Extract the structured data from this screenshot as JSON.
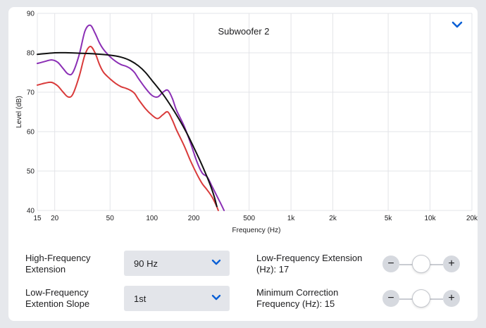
{
  "chart_data": {
    "type": "line",
    "title": "Subwoofer 2",
    "xlabel": "Frequency (Hz)",
    "ylabel": "Level (dB)",
    "xscale": "log",
    "xlim": [
      15,
      20000
    ],
    "ylim": [
      40,
      90
    ],
    "x_ticks": [
      15,
      20,
      50,
      100,
      200,
      500,
      1000,
      2000,
      5000,
      10000,
      20000
    ],
    "x_tick_labels": [
      "15",
      "20",
      "50",
      "100",
      "200",
      "500",
      "1k",
      "2k",
      "5k",
      "10k",
      "20k"
    ],
    "y_ticks": [
      40,
      50,
      60,
      70,
      80,
      90
    ],
    "grid": true,
    "series": [
      {
        "color": "#8b2fb5",
        "x": [
          15,
          17,
          19,
          21,
          23,
          25,
          27,
          30,
          33,
          36,
          39,
          42,
          45,
          50,
          55,
          60,
          65,
          70,
          75,
          80,
          90,
          100,
          110,
          120,
          130,
          140,
          150,
          170,
          190,
          210,
          230,
          250,
          270,
          290,
          310,
          330
        ],
        "y": [
          77.3,
          77.8,
          78.2,
          77.6,
          76.0,
          74.6,
          75.0,
          79.5,
          85.5,
          87.0,
          85.0,
          82.5,
          80.8,
          79.0,
          77.8,
          77.0,
          76.6,
          76.0,
          75.0,
          73.5,
          71.0,
          69.2,
          68.8,
          70.0,
          70.5,
          68.5,
          65.5,
          61.5,
          57.0,
          52.5,
          49.5,
          48.5,
          46.2,
          44.0,
          42.0,
          40.0
        ]
      },
      {
        "color": "#d93a3a",
        "x": [
          15,
          17,
          19,
          21,
          23,
          25,
          27,
          30,
          33,
          36,
          39,
          42,
          45,
          50,
          55,
          60,
          65,
          70,
          75,
          80,
          90,
          100,
          110,
          120,
          130,
          140,
          150,
          170,
          190,
          210,
          230,
          250,
          270,
          290,
          300
        ],
        "y": [
          71.8,
          72.3,
          72.5,
          71.6,
          70.0,
          68.8,
          69.5,
          74.0,
          79.5,
          81.6,
          80.0,
          77.0,
          75.0,
          73.4,
          72.2,
          71.4,
          71.0,
          70.5,
          69.7,
          68.2,
          65.8,
          64.2,
          63.3,
          64.3,
          65.0,
          63.0,
          60.5,
          56.5,
          52.5,
          49.3,
          46.8,
          45.2,
          43.5,
          41.3,
          40.0
        ]
      },
      {
        "color": "#111111",
        "x": [
          15,
          20,
          25,
          30,
          40,
          50,
          60,
          70,
          80,
          90,
          100,
          120,
          140,
          160,
          180,
          200,
          220,
          240,
          260,
          280,
          293
        ],
        "y": [
          79.6,
          80.0,
          80.0,
          79.9,
          79.7,
          79.4,
          78.9,
          78.0,
          76.7,
          75.0,
          73.0,
          69.5,
          66.0,
          62.6,
          59.3,
          56.0,
          52.9,
          49.9,
          46.9,
          43.6,
          41.0
        ]
      }
    ]
  },
  "controls": {
    "hf_extension": {
      "label": "High-Frequency Extension",
      "value": "90 Hz"
    },
    "lf_slope": {
      "label": "Low-Frequency Extention Slope",
      "value": "1st"
    },
    "lf_extension": {
      "label": "Low-Frequency Extension (Hz): 17",
      "minus": "−",
      "plus": "+",
      "level": 0.5
    },
    "min_correction": {
      "label": "Minimum Correction Frequency (Hz): 15",
      "minus": "−",
      "plus": "+",
      "level": 0.5
    }
  },
  "colors": {
    "accent": "#0a60d6",
    "purple": "#8b2fb5",
    "red": "#d93a3a"
  }
}
